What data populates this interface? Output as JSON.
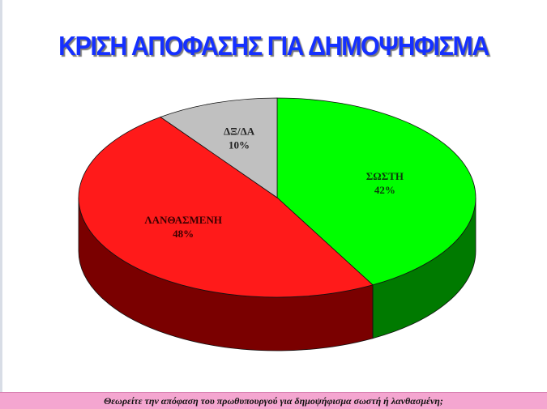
{
  "chart_data": {
    "type": "pie",
    "title": "ΚΡΙΣΗ ΑΠΟΦΑΣΗΣ ΓΙΑ ΔΗΜΟΨΗΦΙΣΜΑ",
    "slices": [
      {
        "label": "ΣΩΣΤΗ",
        "value": 42,
        "value_label": "42%",
        "color": "#00ff00",
        "side_color": "#007a00"
      },
      {
        "label": "ΛΑΝΘΑΣΜΕΝΗ",
        "value": 48,
        "value_label": "48%",
        "color": "#ff1a1a",
        "side_color": "#7a0000"
      },
      {
        "label": "ΔΞ/ΔΑ",
        "value": 10,
        "value_label": "10%",
        "color": "#c0c0c0",
        "side_color": "#6e6e6e"
      }
    ],
    "style": "3d"
  },
  "footer": {
    "question": "Θεωρείτε την απόφαση του πρωθυπουργού για δημοψήφισμα σωστή ή λανθασμένη;"
  }
}
